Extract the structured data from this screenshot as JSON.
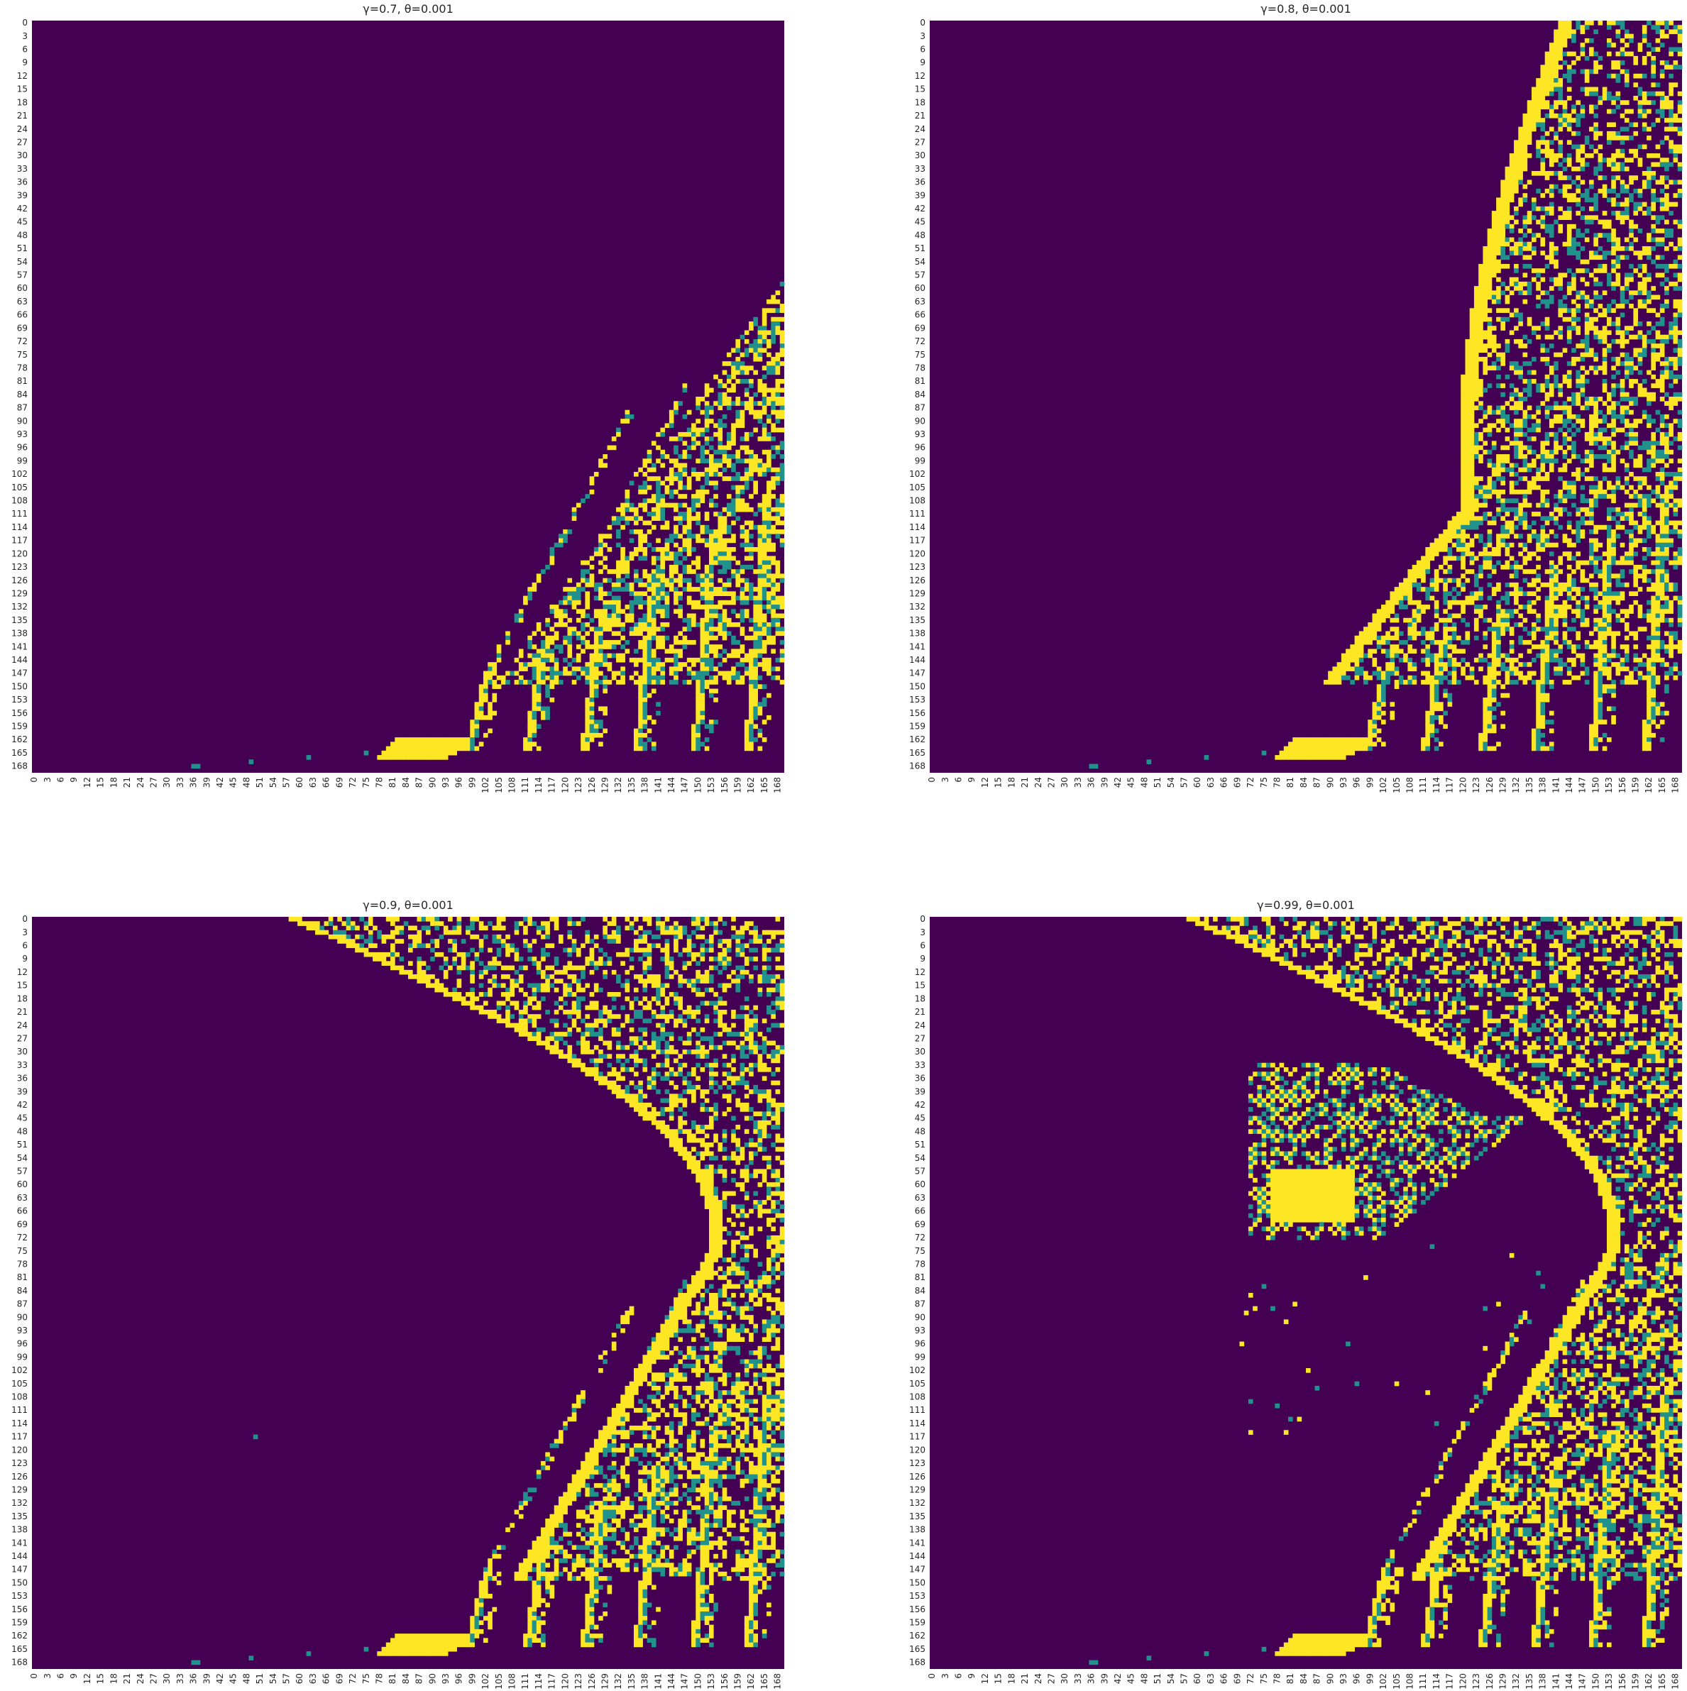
{
  "chart_data": [
    {
      "type": "heatmap",
      "title": "γ=0.7, θ=0.001",
      "rows": 170,
      "cols": 170,
      "tick_step": 3,
      "xticks": [
        "0",
        "3",
        "6",
        "9",
        "12",
        "15",
        "18",
        "21",
        "24",
        "27",
        "30",
        "33",
        "36",
        "39",
        "42",
        "45",
        "48",
        "51",
        "54",
        "57",
        "60",
        "63",
        "66",
        "69",
        "72",
        "75",
        "78",
        "81",
        "84",
        "87",
        "90",
        "93",
        "96",
        "99",
        "102",
        "105",
        "108",
        "111",
        "114",
        "117",
        "120",
        "123",
        "126",
        "129",
        "132",
        "135",
        "138",
        "141",
        "144",
        "147",
        "150",
        "153",
        "156",
        "159",
        "162",
        "165",
        "168"
      ],
      "yticks": [
        "0",
        "3",
        "6",
        "9",
        "12",
        "15",
        "18",
        "21",
        "24",
        "27",
        "30",
        "33",
        "36",
        "39",
        "42",
        "45",
        "48",
        "51",
        "54",
        "57",
        "60",
        "63",
        "66",
        "69",
        "72",
        "75",
        "78",
        "81",
        "84",
        "87",
        "90",
        "93",
        "96",
        "99",
        "102",
        "105",
        "108",
        "111",
        "114",
        "117",
        "120",
        "123",
        "126",
        "129",
        "132",
        "135",
        "138",
        "141",
        "144",
        "147",
        "150",
        "153",
        "156",
        "159",
        "162",
        "165",
        "168"
      ],
      "colormap": [
        "#440154",
        "#21918c",
        "#fde725"
      ],
      "pattern": {
        "low_band": true,
        "ribs": [
          [
            98,
            147
          ],
          [
            111,
            141
          ],
          [
            124,
            133
          ],
          [
            136,
            125
          ],
          [
            149,
            117
          ],
          [
            161,
            108
          ]
        ],
        "arc": null,
        "blob": null
      },
      "colorbar": false
    },
    {
      "type": "heatmap",
      "title": "γ=0.8, θ=0.001",
      "rows": 170,
      "cols": 170,
      "tick_step": 3,
      "xticks": [
        "0",
        "3",
        "6",
        "9",
        "12",
        "15",
        "18",
        "21",
        "24",
        "27",
        "30",
        "33",
        "36",
        "39",
        "42",
        "45",
        "48",
        "51",
        "54",
        "57",
        "60",
        "63",
        "66",
        "69",
        "72",
        "75",
        "78",
        "81",
        "84",
        "87",
        "90",
        "93",
        "96",
        "99",
        "102",
        "105",
        "108",
        "111",
        "114",
        "117",
        "120",
        "123",
        "126",
        "129",
        "132",
        "135",
        "138",
        "141",
        "144",
        "147",
        "150",
        "153",
        "156",
        "159",
        "162",
        "165",
        "168"
      ],
      "yticks": [
        "0",
        "3",
        "6",
        "9",
        "12",
        "15",
        "18",
        "21",
        "24",
        "27",
        "30",
        "33",
        "36",
        "39",
        "42",
        "45",
        "48",
        "51",
        "54",
        "57",
        "60",
        "63",
        "66",
        "69",
        "72",
        "75",
        "78",
        "81",
        "84",
        "87",
        "90",
        "93",
        "96",
        "99",
        "102",
        "105",
        "108",
        "111",
        "114",
        "117",
        "120",
        "123",
        "126",
        "129",
        "132",
        "135",
        "138",
        "141",
        "144",
        "147",
        "150",
        "153",
        "156",
        "159",
        "162",
        "165",
        "168"
      ],
      "colormap": [
        "#440154",
        "#21918c",
        "#fde725"
      ],
      "pattern": {
        "low_band": true,
        "ribs": [
          [
            98,
            147
          ],
          [
            111,
            141
          ],
          [
            124,
            133
          ],
          [
            136,
            125
          ],
          [
            149,
            117
          ],
          [
            161,
            108
          ]
        ],
        "arc": "narrow",
        "blob": null
      },
      "colorbar": false
    },
    {
      "type": "heatmap",
      "title": "γ=0.9, θ=0.001",
      "rows": 170,
      "cols": 170,
      "tick_step": 3,
      "xticks": [
        "0",
        "3",
        "6",
        "9",
        "12",
        "15",
        "18",
        "21",
        "24",
        "27",
        "30",
        "33",
        "36",
        "39",
        "42",
        "45",
        "48",
        "51",
        "54",
        "57",
        "60",
        "63",
        "66",
        "69",
        "72",
        "75",
        "78",
        "81",
        "84",
        "87",
        "90",
        "93",
        "96",
        "99",
        "102",
        "105",
        "108",
        "111",
        "114",
        "117",
        "120",
        "123",
        "126",
        "129",
        "132",
        "135",
        "138",
        "141",
        "144",
        "147",
        "150",
        "153",
        "156",
        "159",
        "162",
        "165",
        "168"
      ],
      "yticks": [
        "0",
        "3",
        "6",
        "9",
        "12",
        "15",
        "18",
        "21",
        "24",
        "27",
        "30",
        "33",
        "36",
        "39",
        "42",
        "45",
        "48",
        "51",
        "54",
        "57",
        "60",
        "63",
        "66",
        "69",
        "72",
        "75",
        "78",
        "81",
        "84",
        "87",
        "90",
        "93",
        "96",
        "99",
        "102",
        "105",
        "108",
        "111",
        "114",
        "117",
        "120",
        "123",
        "126",
        "129",
        "132",
        "135",
        "138",
        "141",
        "144",
        "147",
        "150",
        "153",
        "156",
        "159",
        "162",
        "165",
        "168"
      ],
      "colormap": [
        "#440154",
        "#21918c",
        "#fde725"
      ],
      "pattern": {
        "low_band": true,
        "ribs": [
          [
            98,
            147
          ],
          [
            111,
            141
          ],
          [
            124,
            133
          ],
          [
            136,
            125
          ],
          [
            149,
            117
          ],
          [
            161,
            108
          ]
        ],
        "arc": "wide",
        "blob": null
      },
      "colorbar": false
    },
    {
      "type": "heatmap",
      "title": "γ=0.99, θ=0.001",
      "rows": 170,
      "cols": 170,
      "tick_step": 3,
      "xticks": [
        "0",
        "3",
        "6",
        "9",
        "12",
        "15",
        "18",
        "21",
        "24",
        "27",
        "30",
        "33",
        "36",
        "39",
        "42",
        "45",
        "48",
        "51",
        "54",
        "57",
        "60",
        "63",
        "66",
        "69",
        "72",
        "75",
        "78",
        "81",
        "84",
        "87",
        "90",
        "93",
        "96",
        "99",
        "102",
        "105",
        "108",
        "111",
        "114",
        "117",
        "120",
        "123",
        "126",
        "129",
        "132",
        "135",
        "138",
        "141",
        "144",
        "147",
        "150",
        "153",
        "156",
        "159",
        "162",
        "165",
        "168"
      ],
      "yticks": [
        "0",
        "3",
        "6",
        "9",
        "12",
        "15",
        "18",
        "21",
        "24",
        "27",
        "30",
        "33",
        "36",
        "39",
        "42",
        "45",
        "48",
        "51",
        "54",
        "57",
        "60",
        "63",
        "66",
        "69",
        "72",
        "75",
        "78",
        "81",
        "84",
        "87",
        "90",
        "93",
        "96",
        "99",
        "102",
        "105",
        "108",
        "111",
        "114",
        "117",
        "120",
        "123",
        "126",
        "129",
        "132",
        "135",
        "138",
        "141",
        "144",
        "147",
        "150",
        "153",
        "156",
        "159",
        "162",
        "165",
        "168"
      ],
      "colormap": [
        "#440154",
        "#21918c",
        "#fde725"
      ],
      "pattern": {
        "low_band": true,
        "ribs": [
          [
            98,
            147
          ],
          [
            111,
            141
          ],
          [
            124,
            133
          ],
          [
            136,
            125
          ],
          [
            149,
            117
          ],
          [
            161,
            108
          ]
        ],
        "arc": "wide",
        "blob": true
      },
      "colorbar": false
    }
  ]
}
